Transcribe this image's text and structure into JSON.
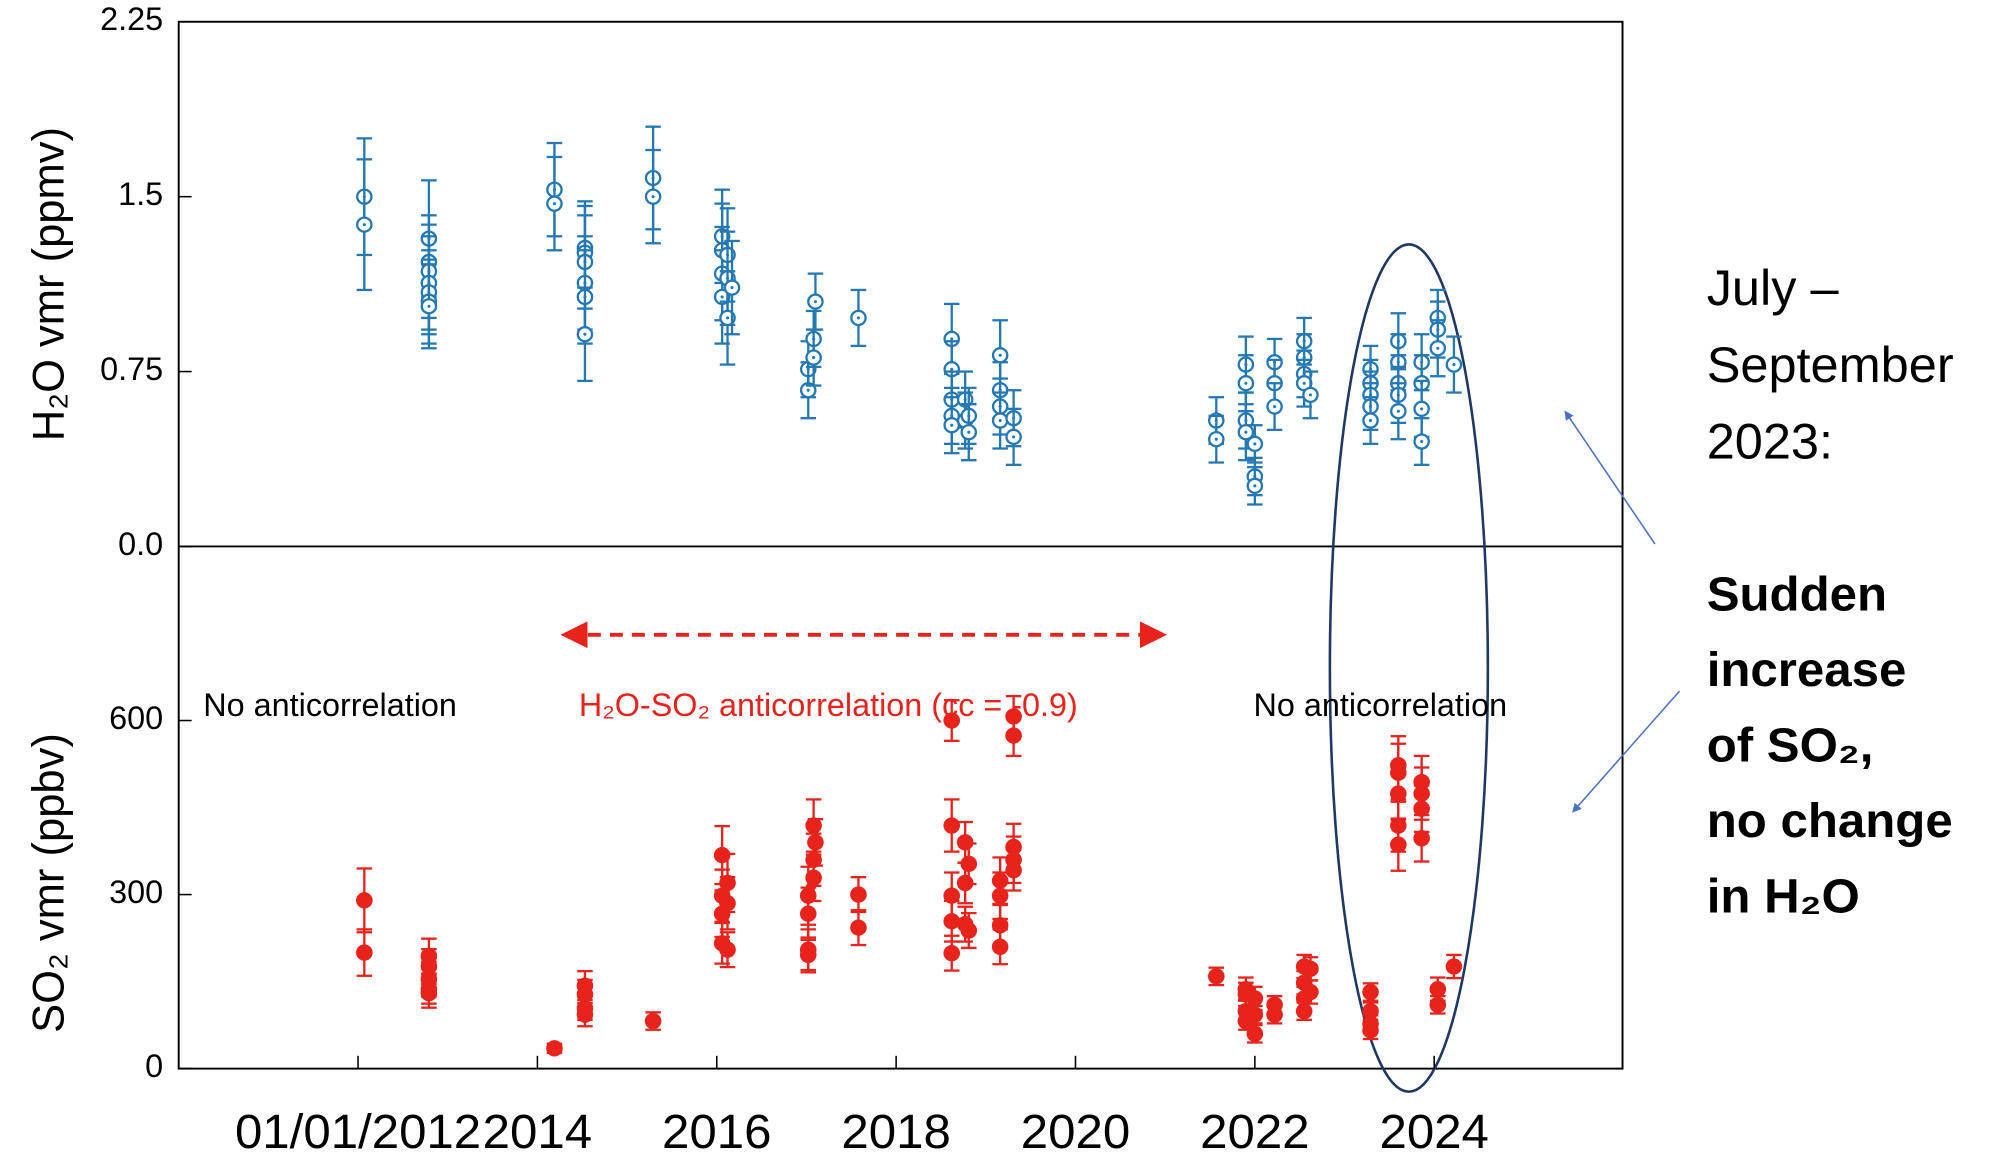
{
  "chart_data": [
    {
      "type": "scatter",
      "ylabel": "H₂O vmr (ppmv)",
      "xlim": [
        2010,
        2026.1
      ],
      "ylim": [
        0,
        2.25
      ],
      "yticks": [
        {
          "value": 0,
          "label": "0.0"
        },
        0.75,
        1.5,
        2.25
      ],
      "series": [
        {
          "color": "#2479b5",
          "marker": "open",
          "x": [
            2012.07,
            2012.07,
            2012.79,
            2012.79,
            2012.79,
            2012.79,
            2012.79,
            2012.79,
            2012.79,
            2014.19,
            2014.19,
            2014.53,
            2014.53,
            2014.53,
            2014.53,
            2014.53,
            2014.53,
            2015.29,
            2015.29,
            2016.06,
            2016.06,
            2016.06,
            2016.06,
            2016.12,
            2016.12,
            2016.12,
            2016.17,
            2017.02,
            2017.02,
            2017.08,
            2017.08,
            2017.1,
            2017.58,
            2018.62,
            2018.62,
            2018.62,
            2018.62,
            2018.62,
            2018.77,
            2018.77,
            2018.81,
            2018.81,
            2019.16,
            2019.16,
            2019.16,
            2019.16,
            2019.31,
            2019.31,
            2021.57,
            2021.57,
            2021.9,
            2021.9,
            2021.9,
            2021.9,
            2022.0,
            2022.0,
            2022.0,
            2022.22,
            2022.22,
            2022.22,
            2022.55,
            2022.55,
            2022.55,
            2022.55,
            2022.62,
            2023.29,
            2023.29,
            2023.29,
            2023.29,
            2023.29,
            2023.6,
            2023.6,
            2023.6,
            2023.6,
            2023.6,
            2023.86,
            2023.86,
            2023.86,
            2023.86,
            2024.04,
            2024.04,
            2024.04,
            2024.22
          ],
          "values": [
            1.5,
            1.38,
            1.32,
            1.22,
            1.18,
            1.13,
            1.09,
            1.05,
            1.03,
            1.53,
            1.47,
            1.28,
            1.26,
            1.22,
            1.13,
            1.07,
            0.91,
            1.58,
            1.5,
            1.33,
            1.27,
            1.17,
            1.07,
            1.25,
            1.15,
            0.98,
            1.11,
            0.76,
            0.67,
            0.89,
            0.81,
            1.05,
            0.98,
            0.89,
            0.76,
            0.63,
            0.56,
            0.52,
            0.63,
            0.54,
            0.56,
            0.49,
            0.82,
            0.67,
            0.6,
            0.54,
            0.55,
            0.47,
            0.54,
            0.46,
            0.78,
            0.7,
            0.54,
            0.49,
            0.44,
            0.3,
            0.26,
            0.79,
            0.7,
            0.6,
            0.88,
            0.81,
            0.74,
            0.7,
            0.65,
            0.76,
            0.7,
            0.65,
            0.6,
            0.54,
            0.88,
            0.79,
            0.7,
            0.65,
            0.58,
            0.79,
            0.7,
            0.59,
            0.45,
            0.98,
            0.93,
            0.85,
            0.78
          ],
          "errors": [
            0.25,
            0.28,
            0.25,
            0.2,
            0.2,
            0.2,
            0.18,
            0.18,
            0.18,
            0.2,
            0.2,
            0.2,
            0.2,
            0.2,
            0.2,
            0.2,
            0.2,
            0.22,
            0.2,
            0.2,
            0.2,
            0.2,
            0.2,
            0.2,
            0.2,
            0.2,
            0.2,
            0.12,
            0.12,
            0.12,
            0.12,
            0.12,
            0.12,
            0.15,
            0.12,
            0.12,
            0.12,
            0.12,
            0.12,
            0.12,
            0.12,
            0.12,
            0.15,
            0.12,
            0.12,
            0.12,
            0.12,
            0.12,
            0.1,
            0.1,
            0.12,
            0.12,
            0.12,
            0.12,
            0.08,
            0.08,
            0.08,
            0.1,
            0.1,
            0.1,
            0.1,
            0.1,
            0.1,
            0.1,
            0.1,
            0.1,
            0.1,
            0.1,
            0.1,
            0.1,
            0.12,
            0.12,
            0.12,
            0.12,
            0.12,
            0.12,
            0.12,
            0.12,
            0.1,
            0.12,
            0.12,
            0.12,
            0.12
          ]
        }
      ]
    },
    {
      "type": "scatter",
      "ylabel": "SO₂ vmr (ppbv)",
      "xlim": [
        2010,
        2026.1
      ],
      "ylim": [
        0,
        900
      ],
      "xticks": [
        {
          "value": 2012,
          "label": "01/01/2012"
        },
        2014,
        2016,
        2018,
        2020,
        2022,
        2024
      ],
      "yticks": [
        0,
        300,
        600
      ],
      "annotations": [
        "No anticorrelation",
        "H₂O-SO₂ anticorrelation (cc = -0.9)",
        "No anticorrelation"
      ],
      "series": [
        {
          "color": "#e8231b",
          "marker": "filled",
          "x": [
            2012.07,
            2012.07,
            2012.79,
            2012.79,
            2012.79,
            2012.79,
            2012.79,
            2014.19,
            2014.53,
            2014.53,
            2014.53,
            2014.53,
            2015.29,
            2016.06,
            2016.06,
            2016.06,
            2016.06,
            2016.12,
            2016.12,
            2016.12,
            2017.02,
            2017.02,
            2017.02,
            2017.02,
            2017.08,
            2017.08,
            2017.08,
            2017.1,
            2017.58,
            2017.58,
            2018.62,
            2018.62,
            2018.62,
            2018.62,
            2018.62,
            2018.77,
            2018.77,
            2018.77,
            2018.81,
            2018.81,
            2019.16,
            2019.16,
            2019.16,
            2019.16,
            2019.31,
            2019.31,
            2019.31,
            2019.31,
            2019.31,
            2021.57,
            2021.9,
            2021.9,
            2021.9,
            2021.9,
            2022.0,
            2022.0,
            2022.0,
            2022.22,
            2022.22,
            2022.55,
            2022.55,
            2022.55,
            2022.55,
            2022.62,
            2022.62,
            2023.29,
            2023.29,
            2023.29,
            2023.29,
            2023.6,
            2023.6,
            2023.6,
            2023.6,
            2023.6,
            2023.86,
            2023.86,
            2023.86,
            2023.86,
            2024.04,
            2024.04,
            2024.22
          ],
          "values": [
            290,
            200,
            194,
            176,
            154,
            137,
            130,
            35,
            143,
            128,
            104,
            93,
            82,
            368,
            298,
            267,
            216,
            320,
            285,
            205,
            298,
            267,
            205,
            196,
            419,
            360,
            329,
            390,
            300,
            243,
            600,
            419,
            298,
            254,
            199,
            390,
            320,
            249,
            353,
            238,
            324,
            298,
            247,
            210,
            607,
            574,
            382,
            360,
            342,
            159,
            137,
            128,
            99,
            82,
            121,
            93,
            60,
            110,
            93,
            176,
            148,
            121,
            99,
            172,
            132,
            132,
            99,
            77,
            66,
            523,
            510,
            474,
            419,
            386,
            494,
            474,
            448,
            397,
            137,
            110,
            176
          ],
          "errors": [
            55,
            40,
            30,
            30,
            30,
            25,
            25,
            8,
            25,
            25,
            20,
            20,
            15,
            50,
            45,
            40,
            35,
            50,
            45,
            30,
            50,
            45,
            35,
            30,
            45,
            45,
            40,
            40,
            30,
            30,
            35,
            45,
            40,
            35,
            30,
            35,
            35,
            30,
            35,
            30,
            40,
            40,
            35,
            30,
            35,
            35,
            40,
            40,
            35,
            15,
            20,
            20,
            20,
            15,
            20,
            15,
            15,
            15,
            15,
            20,
            20,
            20,
            15,
            20,
            20,
            15,
            15,
            15,
            15,
            50,
            50,
            45,
            45,
            45,
            45,
            45,
            40,
            40,
            20,
            15,
            20
          ]
        }
      ]
    }
  ],
  "annotations": {
    "period": [
      "July –",
      "September",
      "2023:"
    ],
    "finding": [
      "Sudden",
      "increase",
      "of SO₂,",
      "no change",
      "in H₂O"
    ]
  }
}
